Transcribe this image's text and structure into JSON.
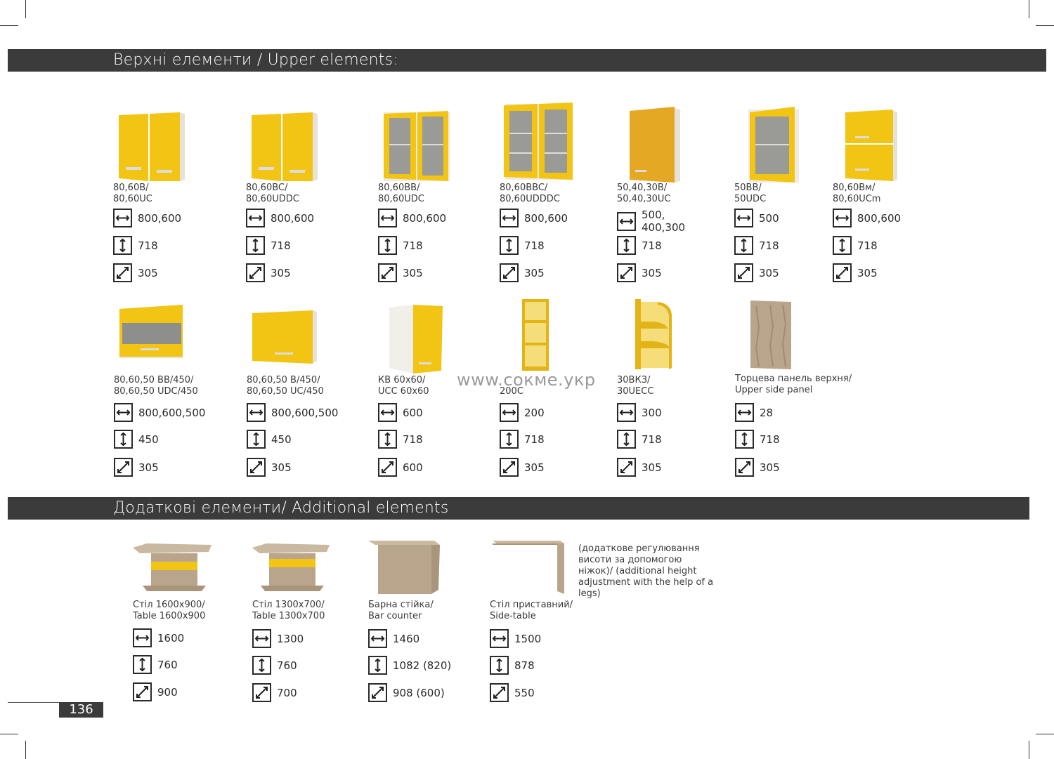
{
  "headers": {
    "upper": "Верхні елементи / Upper elements:",
    "additional": "Додаткові елементи/ Additional elements"
  },
  "watermark": "www.сокме.укр",
  "page_number": "136",
  "row1": [
    {
      "code1": "80,60B/",
      "code2": "80,60UC",
      "w": "800,600",
      "h": "718",
      "d": "305"
    },
    {
      "code1": "80,60BC/",
      "code2": "80,60UDDC",
      "w": "800,600",
      "h": "718",
      "d": "305"
    },
    {
      "code1": "80,60BB/",
      "code2": "80,60UDC",
      "w": "800,600",
      "h": "718",
      "d": "305"
    },
    {
      "code1": "80,60BBC/",
      "code2": "80,60UDDDC",
      "w": "800,600",
      "h": "718",
      "d": "305"
    },
    {
      "code1": "50,40,30B/",
      "code2": "50,40,30UC",
      "w": "500,\n400,300",
      "h": "718",
      "d": "305"
    },
    {
      "code1": "50BB/",
      "code2": "50UDC",
      "w": "500",
      "h": "718",
      "d": "305"
    },
    {
      "code1": "80,60Bм/",
      "code2": "80,60UCm",
      "w": "800,600",
      "h": "718",
      "d": "305"
    }
  ],
  "row2": [
    {
      "code1": "80,60,50 BB/450/",
      "code2": "80,60,50 UDC/450",
      "w": "800,600,500",
      "h": "450",
      "d": "305"
    },
    {
      "code1": "80,60,50 B/450/",
      "code2": "80,60,50 UC/450",
      "w": "800,600,500",
      "h": "450",
      "d": "305"
    },
    {
      "code1": "КВ 60х60/",
      "code2": "UCC 60x60",
      "w": "600",
      "h": "718",
      "d": "600"
    },
    {
      "code1": "",
      "code2": "200C",
      "w": "200",
      "h": "718",
      "d": "305"
    },
    {
      "code1": "30ВКЗ/",
      "code2": "30UECC",
      "w": "300",
      "h": "718",
      "d": "305"
    },
    {
      "code1": "Торцева панель верхня/",
      "code2": "Upper side panel",
      "w": "28",
      "h": "718",
      "d": "305"
    }
  ],
  "additional": [
    {
      "code1": "Стіл 1600х900/",
      "code2": "Table 1600x900",
      "w": "1600",
      "h": "760",
      "d": "900"
    },
    {
      "code1": "Стіл 1300х700/",
      "code2": "Table 1300x700",
      "w": "1300",
      "h": "760",
      "d": "700"
    },
    {
      "code1": "Барна стійка/",
      "code2": "Bar counter",
      "w": "1460",
      "h": "1082 (820)",
      "d": "908 (600)"
    },
    {
      "code1": "Стіл приставний/",
      "code2": "Side-table",
      "w": "1500",
      "h": "878",
      "d": "550"
    }
  ],
  "side_table_note": "(додаткове регулювання висоти за допомогою ніжок)/ (additional height adjustment with the help of a legs)",
  "icons": {
    "width": "width-arrow-icon",
    "height": "height-arrow-icon",
    "depth": "depth-arrow-icon"
  },
  "colors": {
    "facade_yellow": "#f2c413",
    "header_bar": "#3b3b3b",
    "oak": "#b8a58c"
  }
}
